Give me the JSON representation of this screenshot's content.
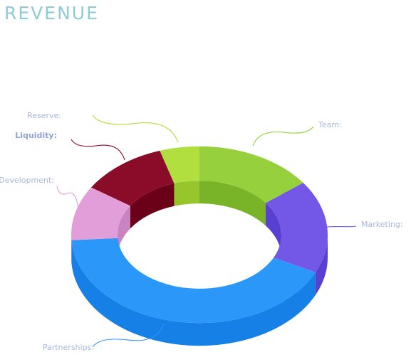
{
  "header": {
    "title": "REVENUE"
  },
  "chart_data": {
    "type": "pie",
    "variant": "3d-donut",
    "title": "REVENUE",
    "legend": "none",
    "slices": [
      {
        "label": "Team:",
        "value": 15,
        "color": "#96d13d",
        "side_color": "#79b328",
        "bold": false
      },
      {
        "label": "Marketing:",
        "value": 17,
        "color": "#7358e8",
        "side_color": "#5a3fd3",
        "bold": false
      },
      {
        "label": "Partnerships:",
        "value": 42,
        "color": "#2b97f9",
        "side_color": "#1680e6",
        "bold": false
      },
      {
        "label": "Development:",
        "value": 10,
        "color": "#e19ed9",
        "side_color": "#c983c0",
        "bold": false
      },
      {
        "label": "Liquidity:",
        "value": 11,
        "color": "#8a0c28",
        "side_color": "#6b0019",
        "bold": true
      },
      {
        "label": "Reserve:",
        "value": 5,
        "color": "#b1df3f",
        "side_color": "#96c52c",
        "bold": false
      }
    ]
  }
}
